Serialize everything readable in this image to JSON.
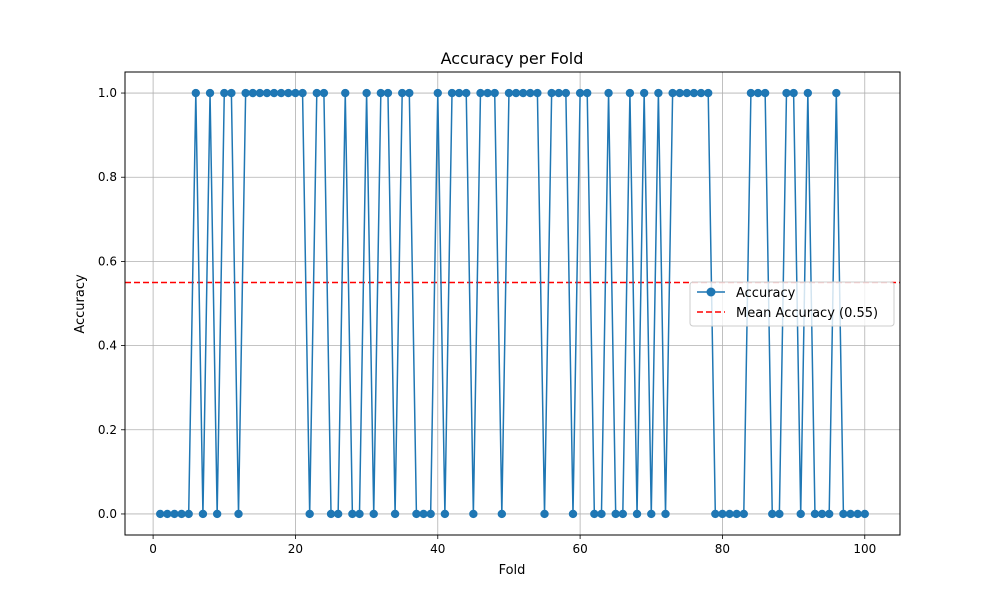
{
  "chart_data": {
    "type": "line",
    "title": "Accuracy per Fold",
    "xlabel": "Fold",
    "ylabel": "Accuracy",
    "xlim": [
      -3.95,
      104.95
    ],
    "ylim": [
      -0.05,
      1.05
    ],
    "xticks": [
      0,
      20,
      40,
      60,
      80,
      100
    ],
    "yticks": [
      0.0,
      0.2,
      0.4,
      0.6,
      0.8,
      1.0
    ],
    "xtick_labels": [
      "0",
      "20",
      "40",
      "60",
      "80",
      "100"
    ],
    "ytick_labels": [
      "0.0",
      "0.2",
      "0.4",
      "0.6",
      "0.8",
      "1.0"
    ],
    "grid": true,
    "legend_position": "center-right",
    "colors": {
      "series": "#1f77b4",
      "mean": "#ff0000",
      "grid": "#b0b0b0"
    },
    "x": [
      1,
      2,
      3,
      4,
      5,
      6,
      7,
      8,
      9,
      10,
      11,
      12,
      13,
      14,
      15,
      16,
      17,
      18,
      19,
      20,
      21,
      22,
      23,
      24,
      25,
      26,
      27,
      28,
      29,
      30,
      31,
      32,
      33,
      34,
      35,
      36,
      37,
      38,
      39,
      40,
      41,
      42,
      43,
      44,
      45,
      46,
      47,
      48,
      49,
      50,
      51,
      52,
      53,
      54,
      55,
      56,
      57,
      58,
      59,
      60,
      61,
      62,
      63,
      64,
      65,
      66,
      67,
      68,
      69,
      70,
      71,
      72,
      73,
      74,
      75,
      76,
      77,
      78,
      79,
      80,
      81,
      82,
      83,
      84,
      85,
      86,
      87,
      88,
      89,
      90,
      91,
      92,
      93,
      94,
      95,
      96,
      97,
      98,
      99,
      100
    ],
    "series": [
      {
        "name": "Accuracy",
        "values": [
          0,
          0,
          0,
          0,
          0,
          1,
          0,
          1,
          0,
          1,
          1,
          0,
          1,
          1,
          1,
          1,
          1,
          1,
          1,
          1,
          1,
          0,
          1,
          1,
          0,
          0,
          1,
          0,
          0,
          1,
          0,
          1,
          1,
          0,
          1,
          1,
          0,
          0,
          0,
          1,
          0,
          1,
          1,
          1,
          0,
          1,
          1,
          1,
          0,
          1,
          1,
          1,
          1,
          1,
          0,
          1,
          1,
          1,
          0,
          1,
          1,
          0,
          0,
          1,
          0,
          0,
          1,
          0,
          1,
          0,
          1,
          0,
          1,
          1,
          1,
          1,
          1,
          1,
          0,
          0,
          0,
          0,
          0,
          1,
          1,
          1,
          0,
          0,
          1,
          1,
          0,
          1,
          0,
          0,
          0,
          1,
          0,
          0,
          0,
          0
        ]
      }
    ],
    "mean_line": {
      "name": "Mean Accuracy (0.55)",
      "value": 0.55
    }
  }
}
